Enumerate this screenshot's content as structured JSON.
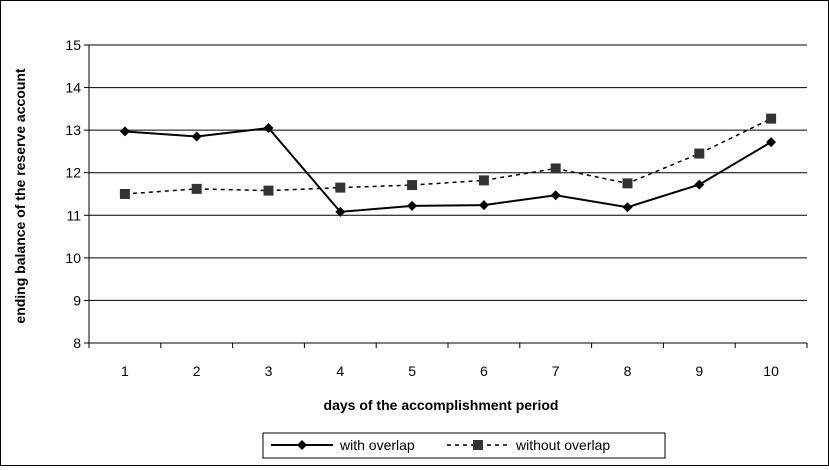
{
  "chart_data": {
    "type": "line",
    "xlabel": "days of the accomplishment period",
    "ylabel": "ending balance of the reserve account",
    "categories": [
      "1",
      "2",
      "3",
      "4",
      "5",
      "6",
      "7",
      "8",
      "9",
      "10"
    ],
    "ylim": [
      8,
      15
    ],
    "y_ticks": [
      "8",
      "9",
      "10",
      "11",
      "12",
      "13",
      "14",
      "15"
    ],
    "grid": "horizontal",
    "legend_position": "bottom",
    "series": [
      {
        "name": "with overlap",
        "values": [
          12.97,
          12.85,
          13.05,
          11.08,
          11.22,
          11.24,
          11.47,
          11.19,
          11.72,
          12.72
        ],
        "color": "#000000",
        "line_style": "solid",
        "marker": "diamond"
      },
      {
        "name": "without overlap",
        "values": [
          11.5,
          11.62,
          11.58,
          11.65,
          11.71,
          11.82,
          12.1,
          11.75,
          12.45,
          13.27
        ],
        "color": "#000000",
        "marker_color": "#333333",
        "line_style": "dashed",
        "marker": "square"
      }
    ]
  }
}
